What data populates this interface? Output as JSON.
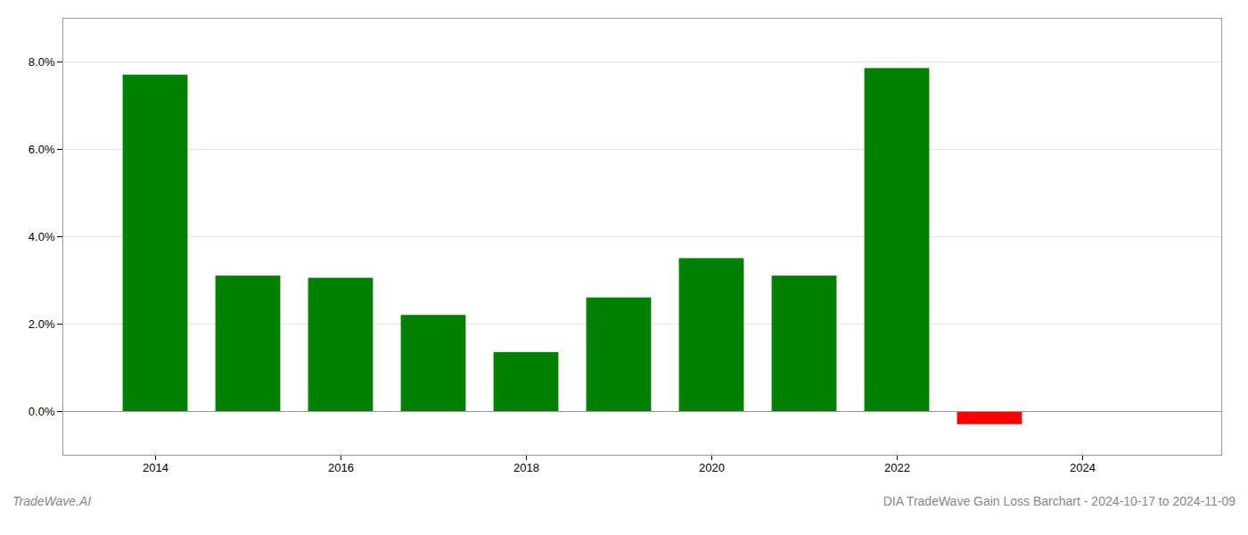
{
  "chart_data": {
    "type": "bar",
    "title": "DIA TradeWave Gain Loss Barchart - 2024-10-17 to 2024-11-09",
    "annotations": [
      "TradeWave.AI"
    ],
    "x": [
      2014,
      2015,
      2016,
      2017,
      2018,
      2019,
      2020,
      2021,
      2022,
      2023
    ],
    "values": [
      0.077,
      0.031,
      0.0305,
      0.022,
      0.0135,
      0.026,
      0.035,
      0.031,
      0.0785,
      -0.003
    ],
    "colors": [
      "#008000",
      "#008000",
      "#008000",
      "#008000",
      "#008000",
      "#008000",
      "#008000",
      "#008000",
      "#008000",
      "#ff0000"
    ],
    "xlim": [
      2013.0,
      2025.5
    ],
    "xticks": [
      2014,
      2016,
      2018,
      2020,
      2022,
      2024
    ],
    "ylim": [
      -0.01,
      0.09
    ],
    "yticks": [
      {
        "value": 0.0,
        "label": "0.0%"
      },
      {
        "value": 0.02,
        "label": "2.0%"
      },
      {
        "value": 0.04,
        "label": "4.0%"
      },
      {
        "value": 0.06,
        "label": "6.0%"
      },
      {
        "value": 0.08,
        "label": "8.0%"
      }
    ],
    "grid": true
  }
}
